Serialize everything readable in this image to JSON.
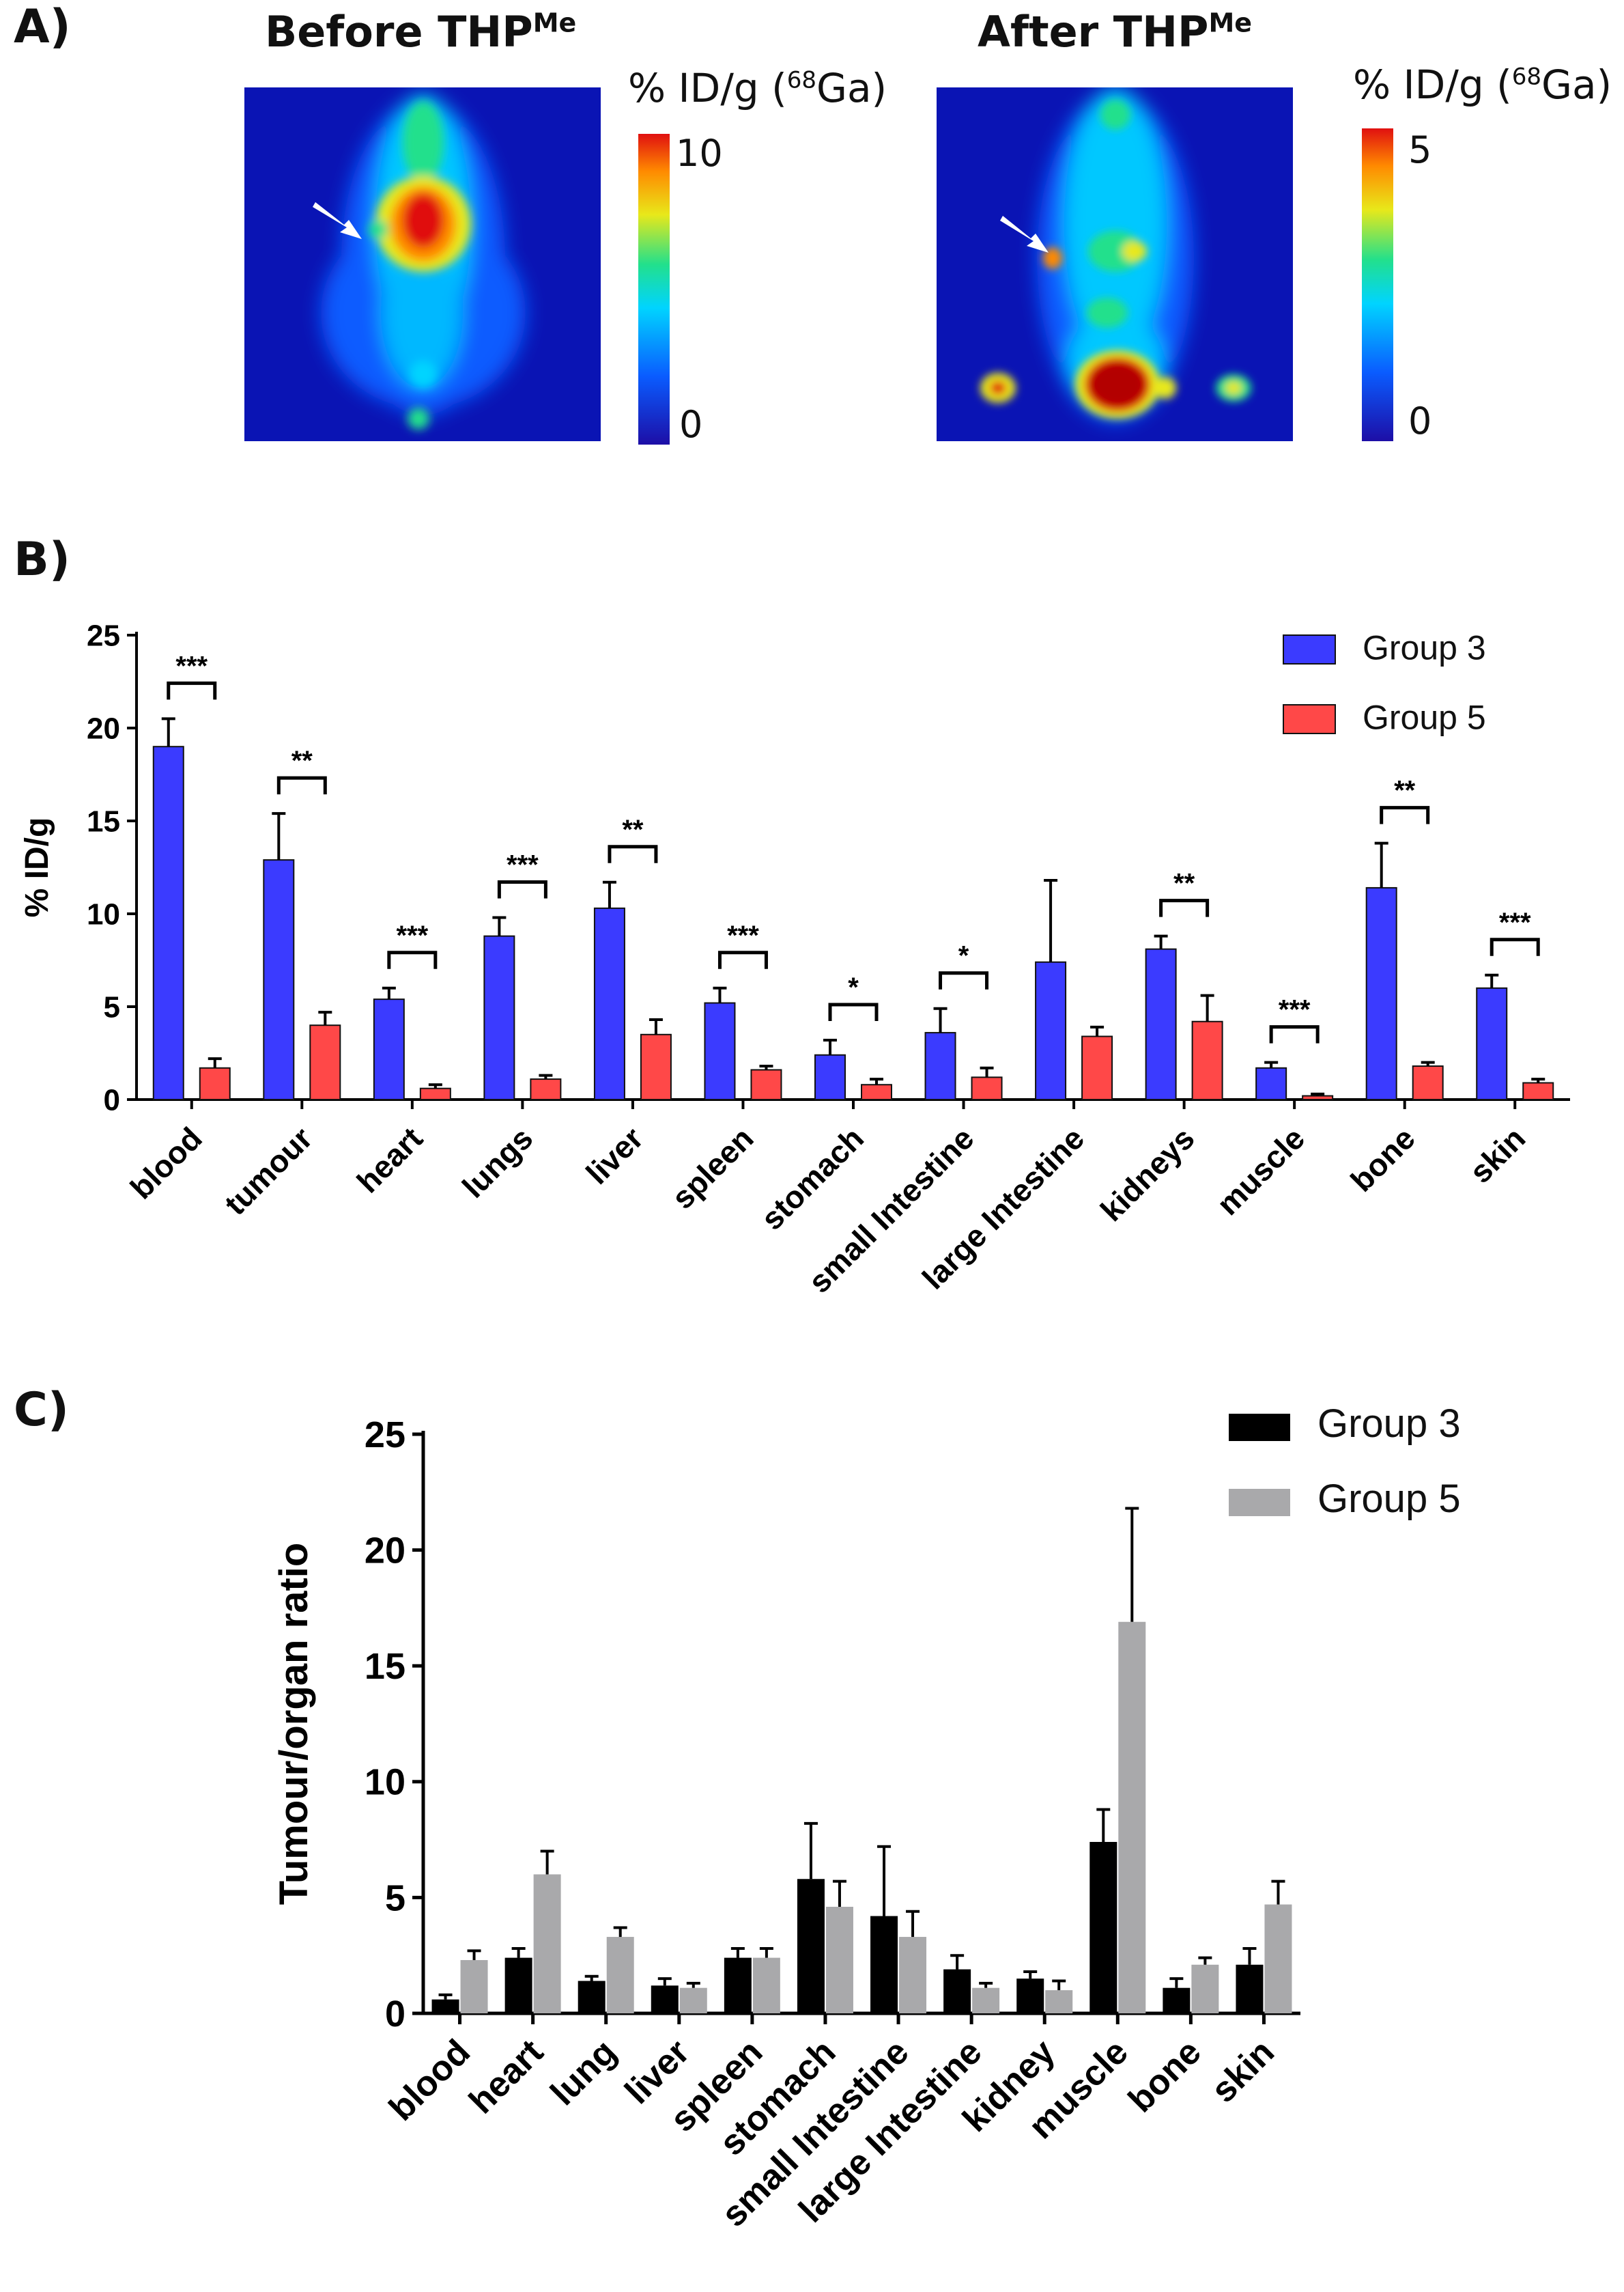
{
  "panels": {
    "a": "A)",
    "b": "B)",
    "c": "C)"
  },
  "pet": {
    "before": {
      "title_main": "Before THP",
      "title_sup": "Me",
      "colorbar_label_pre": "% ID/g (",
      "colorbar_label_sup": "68",
      "colorbar_label_post": "Ga)",
      "max": "10",
      "min": "0"
    },
    "after": {
      "title_main": "After THP",
      "title_sup": "Me",
      "colorbar_label_pre": "% ID/g (",
      "colorbar_label_sup": "68",
      "colorbar_label_post": "Ga)",
      "max": "5",
      "min": "0"
    },
    "colors": [
      "#1d0ea6",
      "#0a5cff",
      "#00d4ff",
      "#22e08c",
      "#e8e81a",
      "#ff8a00",
      "#e01010"
    ]
  },
  "chart_data": [
    {
      "type": "bar",
      "ylabel": "% ID/g",
      "ylim": [
        0,
        25
      ],
      "yticks": [
        0,
        5,
        10,
        15,
        20,
        25
      ],
      "categories": [
        "blood",
        "tumour",
        "heart",
        "lungs",
        "liver",
        "spleen",
        "stomach",
        "small Intestine",
        "large Intestine",
        "kidneys",
        "muscle",
        "bone",
        "skin"
      ],
      "series": [
        {
          "name": "Group 3",
          "color": "#3b3bff",
          "values": [
            19.0,
            12.9,
            5.4,
            8.8,
            10.3,
            5.2,
            2.4,
            3.6,
            7.4,
            8.1,
            1.7,
            11.4,
            6.0
          ],
          "errors": [
            1.5,
            2.5,
            0.6,
            1.0,
            1.4,
            0.8,
            0.8,
            1.3,
            4.4,
            0.7,
            0.3,
            2.4,
            0.7
          ]
        },
        {
          "name": "Group 5",
          "color": "#ff4848",
          "values": [
            1.7,
            4.0,
            0.6,
            1.1,
            3.5,
            1.6,
            0.8,
            1.2,
            3.4,
            4.2,
            0.2,
            1.8,
            0.9
          ],
          "errors": [
            0.5,
            0.7,
            0.2,
            0.2,
            0.8,
            0.2,
            0.3,
            0.5,
            0.5,
            1.4,
            0.1,
            0.2,
            0.2
          ]
        }
      ],
      "significance": [
        "***",
        "**",
        "***",
        "***",
        "**",
        "***",
        "*",
        "*",
        "",
        "**",
        "***",
        "**",
        "***"
      ],
      "legend": "top-right"
    },
    {
      "type": "bar",
      "ylabel": "Tumour/organ ratio",
      "ylim": [
        0,
        25
      ],
      "yticks": [
        0,
        5,
        10,
        15,
        20,
        25
      ],
      "categories": [
        "blood",
        "heart",
        "lung",
        "liver",
        "spleen",
        "stomach",
        "small Intestine",
        "large Intestine",
        "kidney",
        "muscle",
        "bone",
        "skin"
      ],
      "series": [
        {
          "name": "Group 3",
          "color": "#000000",
          "values": [
            0.6,
            2.4,
            1.4,
            1.2,
            2.4,
            5.8,
            4.2,
            1.9,
            1.5,
            7.4,
            1.1,
            2.1
          ],
          "errors": [
            0.2,
            0.4,
            0.2,
            0.3,
            0.4,
            2.4,
            3.0,
            0.6,
            0.3,
            1.4,
            0.4,
            0.7
          ]
        },
        {
          "name": "Group 5",
          "color": "#a9a9ab",
          "values": [
            2.3,
            6.0,
            3.3,
            1.1,
            2.4,
            4.6,
            3.3,
            1.1,
            1.0,
            16.9,
            2.1,
            4.7
          ],
          "errors": [
            0.4,
            1.0,
            0.4,
            0.2,
            0.4,
            1.1,
            1.1,
            0.2,
            0.4,
            4.9,
            0.3,
            1.0
          ]
        }
      ],
      "legend": "top-right"
    }
  ]
}
